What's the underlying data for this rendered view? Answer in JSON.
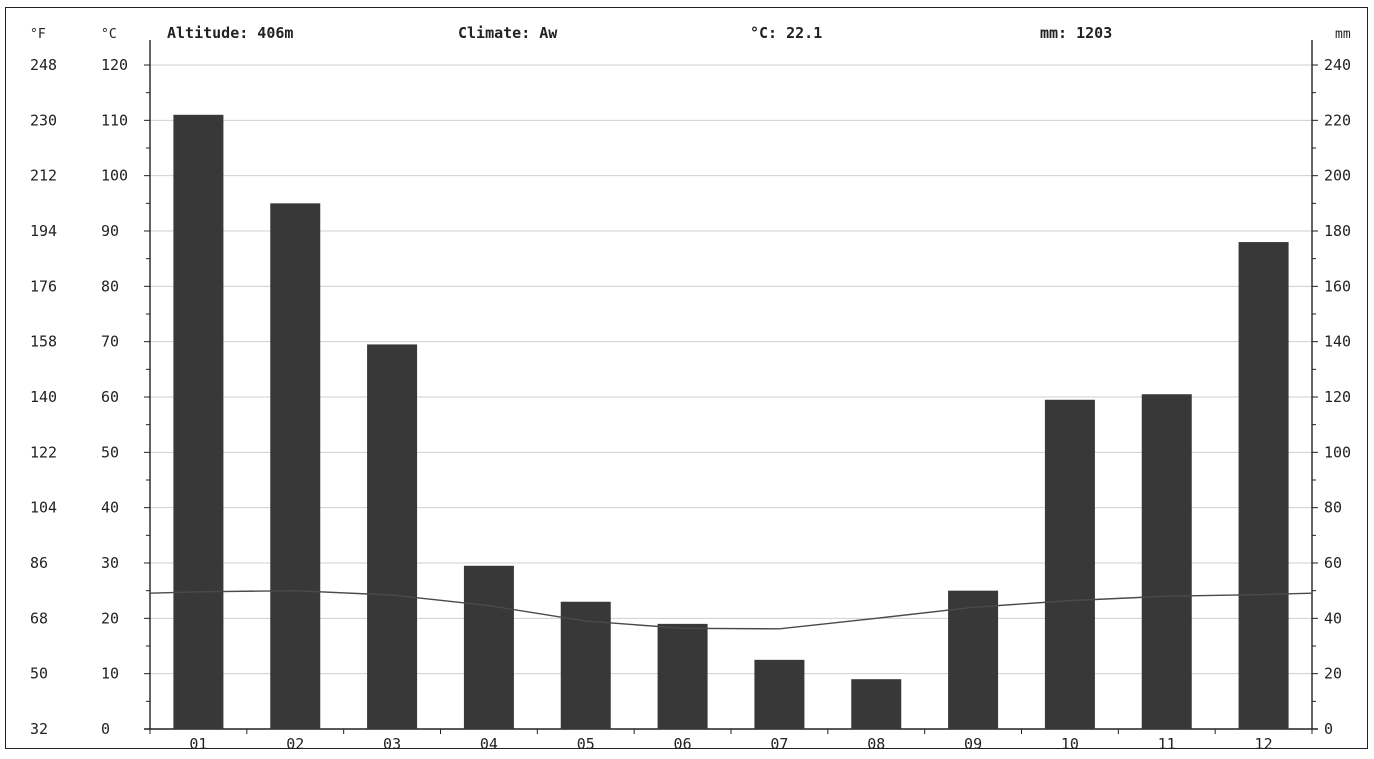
{
  "header": {
    "altitude": "Altitude: 406m",
    "climate": "Climate: Aw",
    "mean_temp": "°C: 22.1",
    "precip": "mm: 1203"
  },
  "units": {
    "fahrenheit": "°F",
    "celsius": "°C",
    "mm": "mm"
  },
  "chart_data": {
    "type": "bar",
    "categories": [
      "01",
      "02",
      "03",
      "04",
      "05",
      "06",
      "07",
      "08",
      "09",
      "10",
      "11",
      "12"
    ],
    "series": [
      {
        "kind": "bar",
        "axis": "mm",
        "values": [
          222,
          190,
          139,
          59,
          46,
          38,
          25,
          18,
          50,
          119,
          121,
          176
        ]
      },
      {
        "kind": "line",
        "axis": "°C",
        "values": [
          24.8,
          25.0,
          24.2,
          22.3,
          19.5,
          18.2,
          18.1,
          20.0,
          22.0,
          23.2,
          24.0,
          24.3
        ]
      }
    ],
    "axes": {
      "fahrenheit": {
        "label": "°F",
        "ticks": [
          32,
          50,
          68,
          86,
          104,
          122,
          140,
          158,
          176,
          194,
          212,
          230,
          248
        ]
      },
      "celsius": {
        "label": "°C",
        "range": [
          0,
          120
        ],
        "ticks": [
          0,
          10,
          20,
          30,
          40,
          50,
          60,
          70,
          80,
          90,
          100,
          110,
          120
        ]
      },
      "precipitation": {
        "label": "mm",
        "range": [
          0,
          240
        ],
        "ticks": [
          0,
          20,
          40,
          60,
          80,
          100,
          120,
          140,
          160,
          180,
          200,
          220,
          240
        ]
      }
    },
    "grid": true
  }
}
